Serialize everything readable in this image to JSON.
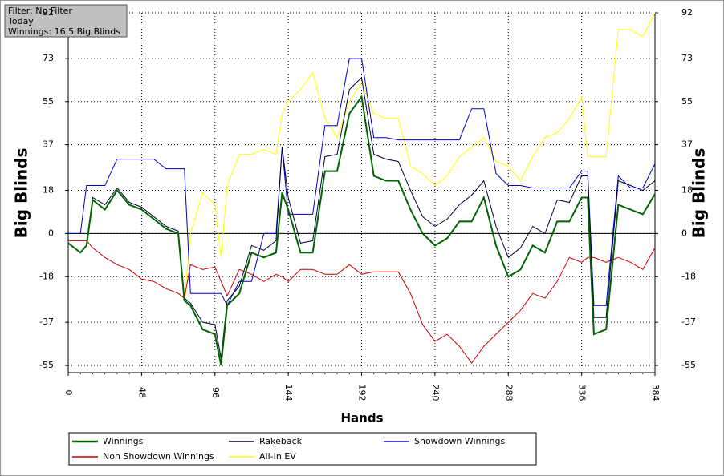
{
  "chart_data": {
    "type": "line",
    "x_label": "Hands",
    "y_label": "Big Blinds",
    "y2_label": "Big Blinds",
    "x": [
      0,
      8,
      12,
      16,
      24,
      32,
      40,
      48,
      56,
      64,
      72,
      76,
      80,
      88,
      96,
      100,
      104,
      112,
      120,
      128,
      136,
      140,
      144,
      152,
      160,
      168,
      176,
      184,
      192,
      200,
      208,
      216,
      224,
      232,
      240,
      248,
      256,
      264,
      272,
      280,
      288,
      296,
      304,
      312,
      320,
      328,
      336,
      340,
      344,
      352,
      360,
      368,
      376,
      384
    ],
    "xlim": [
      0,
      384
    ],
    "xticks": [
      0,
      48,
      96,
      144,
      192,
      240,
      288,
      336,
      384
    ],
    "ylim": [
      -58,
      92
    ],
    "yticks": [
      -55,
      -37,
      -18,
      0,
      18,
      37,
      55,
      73,
      92
    ],
    "y2lim": [
      -58,
      92
    ],
    "y2ticks": [
      -55,
      -37,
      -18,
      0,
      18,
      37,
      55,
      73,
      92
    ],
    "grid": true,
    "series": [
      {
        "name": "Winnings",
        "color": "#006400",
        "width": 2,
        "values": [
          -4,
          -8,
          -5,
          14,
          10,
          18,
          12,
          10,
          6,
          2,
          0,
          -28,
          -30,
          -40,
          -42,
          -55,
          -30,
          -25,
          -8,
          -10,
          -8,
          17,
          10,
          -8,
          -8,
          26,
          26,
          50,
          57,
          24,
          22,
          22,
          10,
          0,
          -5,
          -2,
          5,
          5,
          15,
          -5,
          -18,
          -15,
          -5,
          -8,
          5,
          5,
          15,
          15,
          -42,
          -40,
          12,
          10,
          8,
          16.5
        ]
      },
      {
        "name": "Rakeback",
        "color": "#000033",
        "width": 1,
        "values": [
          -4,
          -8,
          -5,
          15,
          12,
          19,
          13,
          11,
          7,
          3,
          1,
          -27,
          -29,
          -37,
          -38,
          -52,
          -28,
          -22,
          -5,
          -7,
          -3,
          36,
          15,
          -4,
          -3,
          32,
          33,
          60,
          65,
          33,
          31,
          30,
          18,
          7,
          3,
          6,
          12,
          16,
          22,
          3,
          -10,
          -6,
          3,
          0,
          14,
          13,
          24,
          24,
          -35,
          -35,
          22,
          20,
          18,
          22
        ]
      },
      {
        "name": "Showdown Winnings",
        "color": "#0000cc",
        "width": 1,
        "values": [
          0,
          0,
          20,
          20,
          20,
          31,
          31,
          31,
          31,
          27,
          27,
          27,
          -25,
          -25,
          -25,
          -25,
          -30,
          -20,
          -20,
          0,
          0,
          36,
          8,
          8,
          8,
          45,
          45,
          73,
          73,
          40,
          40,
          39,
          39,
          39,
          39,
          39,
          39,
          52,
          52,
          25,
          20,
          20,
          19,
          19,
          19,
          19,
          26,
          26,
          -30,
          -30,
          24,
          19,
          19,
          29
        ]
      },
      {
        "name": "Non Showdown Winnings",
        "color": "#cc0000",
        "width": 1,
        "values": [
          -3,
          -3,
          -3,
          -6,
          -10,
          -13,
          -15,
          -19,
          -20,
          -23,
          -25,
          -27,
          -13,
          -15,
          -14,
          -20,
          -26,
          -15,
          -17,
          -20,
          -17,
          -18,
          -20,
          -15,
          -15,
          -17,
          -17,
          -13,
          -17,
          -16,
          -16,
          -16,
          -25,
          -38,
          -45,
          -42,
          -47,
          -54,
          -47,
          -42,
          -37,
          -32,
          -25,
          -27,
          -20,
          -10,
          -12,
          -10,
          -10,
          -12,
          -10,
          -12,
          -15,
          -6
        ]
      },
      {
        "name": "All-In EV",
        "color": "#ffff00",
        "width": 1,
        "values": [
          -4,
          -8,
          -5,
          14,
          10,
          18,
          12,
          10,
          6,
          2,
          0,
          -28,
          0,
          17,
          12,
          -10,
          20,
          33,
          33,
          35,
          33,
          50,
          55,
          60,
          67,
          48,
          40,
          55,
          63,
          50,
          48,
          48,
          28,
          25,
          20,
          24,
          32,
          36,
          40,
          30,
          28,
          22,
          32,
          40,
          42,
          48,
          57,
          32,
          32,
          32,
          85,
          85,
          82,
          92
        ]
      }
    ]
  },
  "filter_box": {
    "lines": [
      "Filter: No Filter",
      "Today",
      "Winnings: 16.5 Big Blinds"
    ]
  }
}
